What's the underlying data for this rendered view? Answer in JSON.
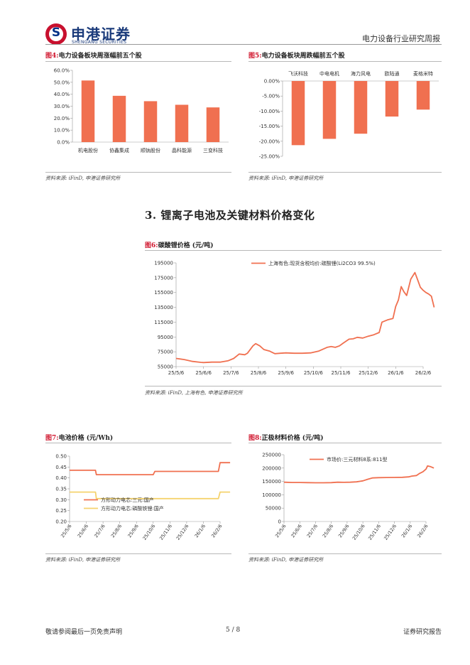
{
  "header": {
    "logo_cn": "申港证券",
    "logo_en": "SHENGANG SECURITIES",
    "report_title": "电力设备行业研究周报"
  },
  "fig4": {
    "num": "图4:",
    "caption": "电力设备板块周涨幅前五个股",
    "source": "资料来源: iFinD, 申港证券研究所"
  },
  "fig5": {
    "num": "图5:",
    "caption": "电力设备板块周跌幅前五个股",
    "source": "资料来源: iFinD, 申港证券研究所"
  },
  "section3": {
    "title": "3. 锂离子电池及关键材料价格变化"
  },
  "fig6": {
    "num": "图6:",
    "caption": "碳酸锂价格 (元/吨)",
    "source": "资料来源: iFinD, 上海有色, 申港证券研究所"
  },
  "fig7": {
    "num": "图7:",
    "caption": "电池价格 (元/Wh)",
    "source": "资料来源: iFinD, 申港证券研究所"
  },
  "fig8": {
    "num": "图8:",
    "caption": "正极材料价格 (元/吨)",
    "source": "资料来源: iFinD, 申港证券研究所"
  },
  "footer": {
    "disclaimer": "敬请参阅最后一页免责声明",
    "page": "5 / 8",
    "type": "证券研究报告"
  },
  "colors": {
    "bar": "#f07050",
    "line": "#f07050",
    "line2": "#f5d36e",
    "axis": "#999999"
  },
  "chart_data": [
    {
      "id": "fig4",
      "type": "bar",
      "title": "电力设备板块周涨幅前五个股",
      "categories": [
        "机电股份",
        "协鑫集成",
        "顺钠股份",
        "晶科能源",
        "三变科技"
      ],
      "values": [
        51.5,
        38.7,
        34.2,
        31.2,
        29.0
      ],
      "ylim": [
        0,
        60
      ],
      "yticks": [
        "60.0%",
        "50.0%",
        "40.0%",
        "30.0%",
        "20.0%",
        "10.0%",
        "0.0%"
      ]
    },
    {
      "id": "fig5",
      "type": "bar",
      "title": "电力设备板块周跌幅前五个股",
      "categories": [
        "飞沃科技",
        "中电电机",
        "海力风电",
        "欧陆通",
        "麦格米特"
      ],
      "values": [
        -21.3,
        -19.2,
        -17.5,
        -11.8,
        -9.5
      ],
      "ylim": [
        -25,
        0
      ],
      "yticks": [
        "0.00%",
        "-5.00%",
        "-10.00%",
        "-15.00%",
        "-20.00%",
        "-25.00%"
      ]
    },
    {
      "id": "fig6",
      "type": "line",
      "title": "碳酸锂价格 (元/吨)",
      "legend": "上海有色:现货含税均价:碳酸锂(Li2CO3 99.5%)",
      "xticks": [
        "25/5/6",
        "25/6/6",
        "25/7/6",
        "25/8/6",
        "25/9/6",
        "25/10/6",
        "25/11/6",
        "25/12/6",
        "26/1/6",
        "26/2/6"
      ],
      "yticks": [
        "195000",
        "175000",
        "155000",
        "135000",
        "115000",
        "95000",
        "75000",
        "55000"
      ],
      "ylim": [
        55000,
        195000
      ],
      "series": [
        {
          "name": "上海有色:现货含税均价:碳酸锂(Li2CO3 99.5%)",
          "x": [
            0,
            0.3,
            0.6,
            0.9,
            1.0,
            1.3,
            1.6,
            1.9,
            2.1,
            2.3,
            2.5,
            2.6,
            2.8,
            2.9,
            3.05,
            3.2,
            3.4,
            3.6,
            3.8,
            4.0,
            4.3,
            4.6,
            4.9,
            5.2,
            5.5,
            5.65,
            5.8,
            5.95,
            6.1,
            6.3,
            6.45,
            6.6,
            6.8,
            7.0,
            7.2,
            7.4,
            7.5,
            7.7,
            7.9,
            8.0,
            8.1,
            8.2,
            8.3,
            8.4,
            8.55,
            8.7,
            8.8,
            8.9,
            9.0,
            9.1,
            9.2,
            9.3,
            9.4
          ],
          "values": [
            66000,
            64500,
            62000,
            60800,
            60500,
            61000,
            61000,
            63000,
            66000,
            72000,
            71000,
            73000,
            83000,
            86000,
            83000,
            78000,
            76000,
            72500,
            73000,
            73500,
            73000,
            73000,
            73500,
            76000,
            81000,
            82000,
            81000,
            83000,
            87000,
            92000,
            92500,
            94500,
            93500,
            96000,
            98000,
            101000,
            115000,
            118000,
            120000,
            136000,
            145000,
            163000,
            156000,
            151000,
            173000,
            182000,
            172000,
            162000,
            158000,
            155000,
            153000,
            150000,
            135000
          ]
        }
      ]
    },
    {
      "id": "fig7",
      "type": "line",
      "title": "电池价格 (元/Wh)",
      "xticks": [
        "25/5/6",
        "25/6/6",
        "25/7/6",
        "25/8/6",
        "25/9/6",
        "25/10/6",
        "25/11/6",
        "25/12/6",
        "26/1/6",
        "26/2/6"
      ],
      "yticks": [
        "0.50",
        "0.45",
        "0.40",
        "0.35",
        "0.30",
        "0.25",
        "0.20"
      ],
      "ylim": [
        0.2,
        0.5
      ],
      "series": [
        {
          "name": "方形动力电芯:三元:国产",
          "x": [
            0,
            1.55,
            1.6,
            5.0,
            5.1,
            8.9,
            9.0,
            9.6
          ],
          "values": [
            0.435,
            0.435,
            0.415,
            0.415,
            0.43,
            0.43,
            0.47,
            0.47
          ]
        },
        {
          "name": "方形动力电芯:磷酸铁锂:国产",
          "x": [
            0,
            1.55,
            1.6,
            8.9,
            9.0,
            9.6
          ],
          "values": [
            0.335,
            0.335,
            0.305,
            0.305,
            0.335,
            0.335
          ]
        }
      ]
    },
    {
      "id": "fig8",
      "type": "line",
      "title": "正极材料价格 (元/吨)",
      "legend": "市场价:三元材料8系:811型",
      "xticks": [
        "25/5/6",
        "25/6/6",
        "25/7/6",
        "25/8/6",
        "25/9/6",
        "25/10/6",
        "25/11/6",
        "25/12/6",
        "26/1/6",
        "26/2/6"
      ],
      "yticks": [
        "250000",
        "200000",
        "150000",
        "100000",
        "50000",
        "0"
      ],
      "ylim": [
        0,
        250000
      ],
      "series": [
        {
          "name": "市场价:三元材料8系:811型",
          "x": [
            0,
            0.5,
            1.0,
            1.5,
            2.0,
            2.5,
            3.0,
            3.4,
            3.8,
            4.2,
            4.6,
            5.0,
            5.3,
            5.6,
            6.0,
            6.5,
            7.0,
            7.5,
            7.9,
            8.1,
            8.4,
            8.6,
            8.8,
            9.0,
            9.1,
            9.3,
            9.5
          ],
          "values": [
            147000,
            146000,
            146000,
            145500,
            145000,
            145000,
            145500,
            147000,
            146500,
            147000,
            148500,
            152000,
            158000,
            163000,
            164000,
            164500,
            165000,
            165500,
            167000,
            170000,
            172000,
            180000,
            186000,
            196000,
            208000,
            205000,
            200000
          ]
        }
      ]
    }
  ]
}
